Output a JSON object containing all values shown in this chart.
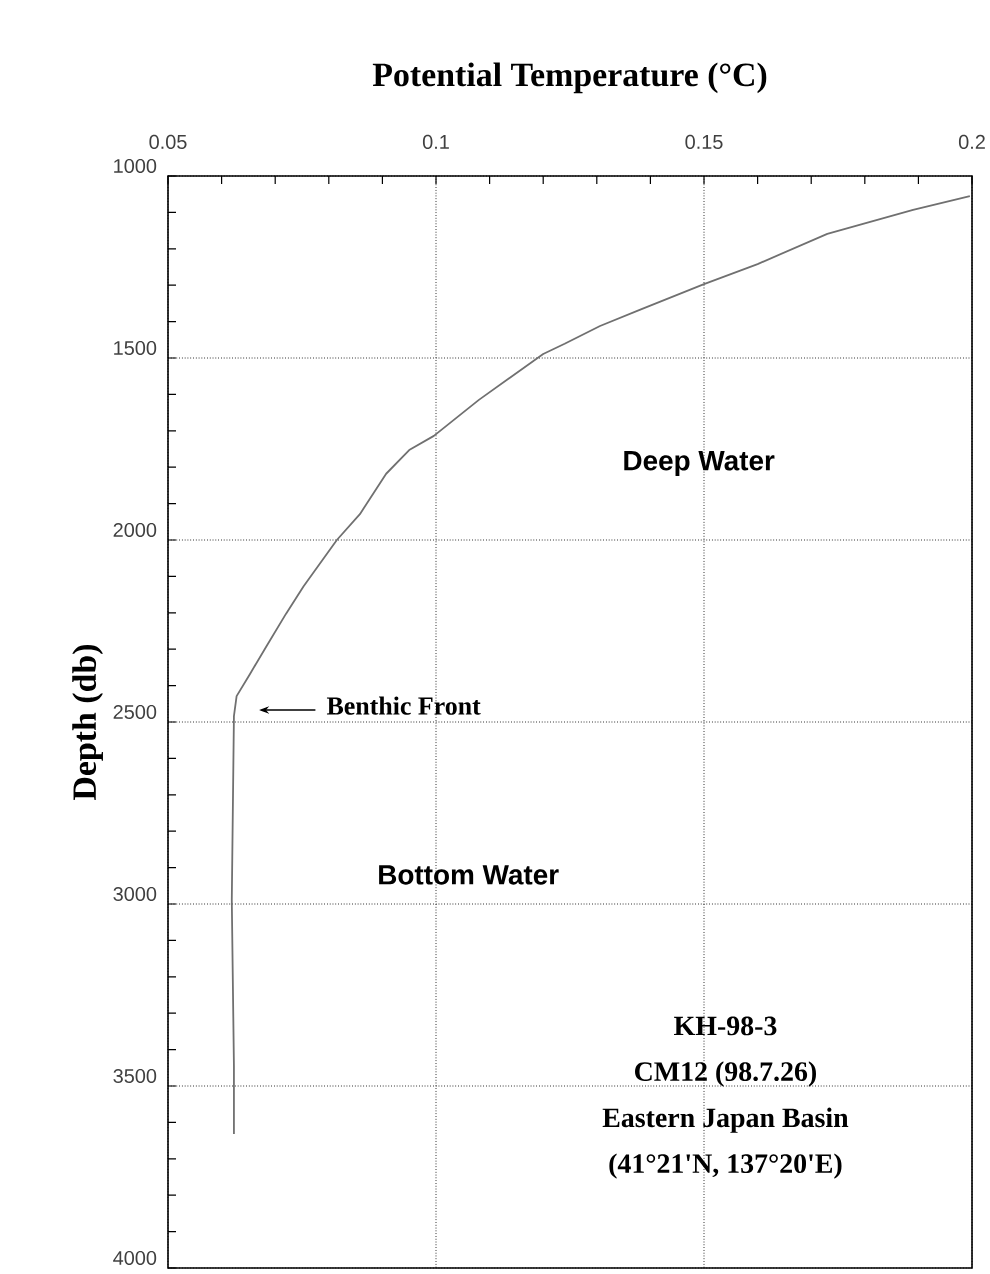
{
  "chart_data": {
    "type": "line",
    "xlabel": "Potential Temperature (°C)",
    "ylabel": "Depth (db)",
    "xlim": [
      0.05,
      0.2
    ],
    "ylim": [
      4000,
      1000
    ],
    "xticks": [
      0.05,
      0.1,
      0.15,
      0.2
    ],
    "yticks": [
      1000,
      1500,
      2000,
      2500,
      3000,
      3500,
      4000
    ],
    "grid": true,
    "line_style": "solid",
    "marker": "none",
    "series": [
      {
        "color": "#707070",
        "x": [
          0.1996,
          0.189,
          0.173,
          0.16,
          0.15,
          0.138,
          0.1306,
          0.124,
          0.12,
          0.108,
          0.0996,
          0.095,
          0.0907,
          0.0858,
          0.0815,
          0.0753,
          0.072,
          0.0684,
          0.0653,
          0.0628,
          0.0623,
          0.0619,
          0.0623,
          0.0623
        ],
        "values": [
          1055,
          1093,
          1159,
          1242,
          1297,
          1368,
          1412,
          1461,
          1489,
          1615,
          1714,
          1753,
          1818,
          1929,
          2000,
          2127,
          2203,
          2291,
          2368,
          2429,
          2484,
          2989,
          3445,
          3632
        ]
      }
    ],
    "annotations": [
      "Benthic Front",
      "Deep Water",
      "Bottom Water",
      "KH-98-3",
      "CM12 (98.7.26)",
      "Eastern Japan Basin",
      "(41°21'N, 137°20'E)"
    ]
  }
}
